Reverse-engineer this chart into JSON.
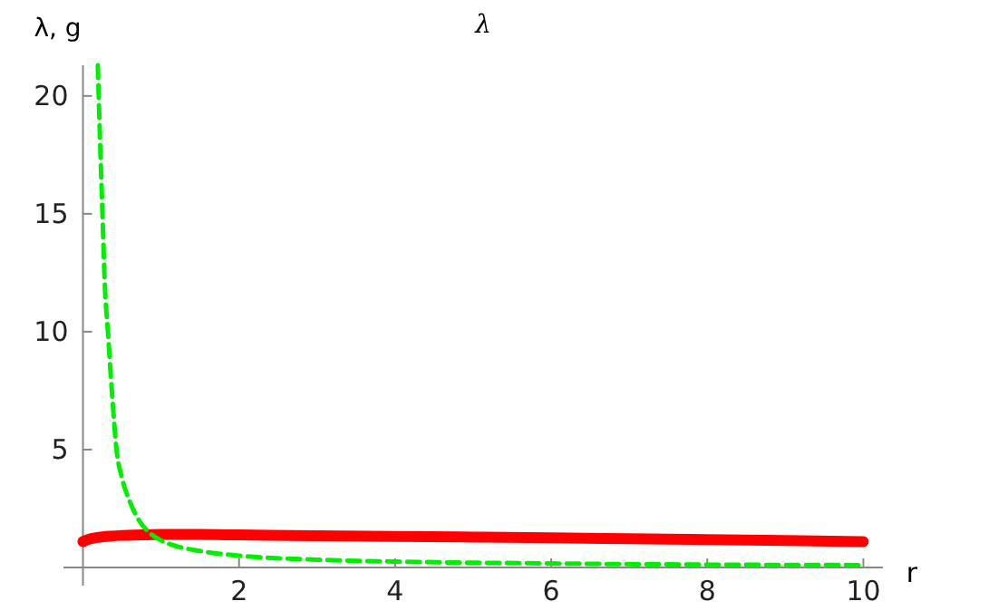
{
  "chart_data": {
    "type": "line",
    "title": "λ",
    "xlabel": "r",
    "ylabel": "λ, g",
    "xlim": [
      -0.25,
      10.25
    ],
    "ylim": [
      0,
      21.3
    ],
    "xticks": [
      2,
      4,
      6,
      8,
      10
    ],
    "yticks": [
      5,
      10,
      15,
      20
    ],
    "grid": false,
    "series": [
      {
        "color": "#ff0000",
        "x": [
          0,
          0.1,
          0.2,
          0.35,
          0.5,
          0.75,
          1,
          1.5,
          2,
          3,
          4,
          5,
          6,
          7,
          8,
          9,
          10
        ],
        "values": [
          1.1,
          1.22,
          1.28,
          1.33,
          1.36,
          1.38,
          1.4,
          1.4,
          1.38,
          1.35,
          1.32,
          1.29,
          1.26,
          1.22,
          1.18,
          1.14,
          1.1
        ]
      },
      {
        "color": "#00ee00",
        "line_style": "dashed",
        "x": [
          0.19,
          0.22,
          0.25,
          0.28,
          0.32,
          0.37,
          0.43,
          0.5,
          0.6,
          0.7,
          0.88,
          1,
          1.2,
          1.5,
          2,
          3,
          4,
          6,
          8,
          10
        ],
        "values": [
          21.3,
          18,
          15,
          12,
          10,
          7.5,
          5,
          3.8,
          2.8,
          2.1,
          1.4,
          1.15,
          0.9,
          0.7,
          0.5,
          0.33,
          0.25,
          0.17,
          0.12,
          0.1
        ]
      }
    ]
  }
}
